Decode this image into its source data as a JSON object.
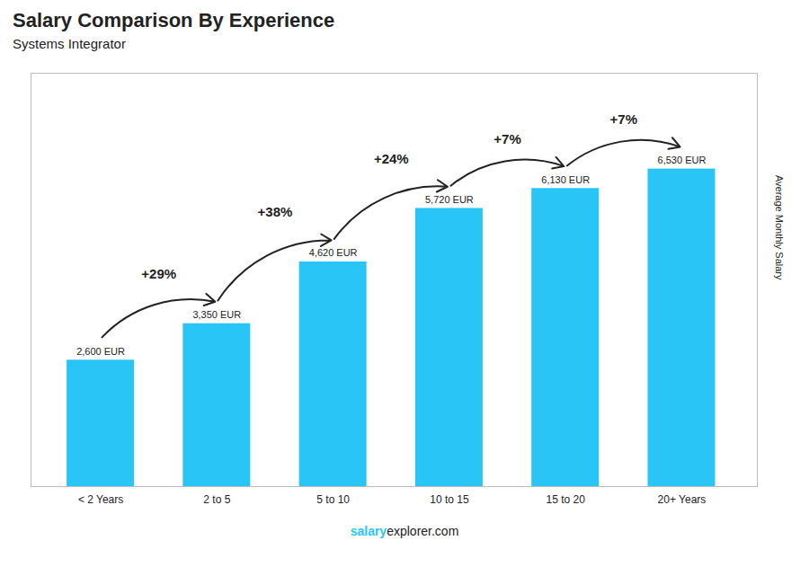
{
  "chart_data": {
    "type": "bar",
    "title": "Salary Comparison By Experience",
    "subtitle": "Systems Integrator",
    "categories": [
      "< 2 Years",
      "2 to 5",
      "5 to 10",
      "10 to 15",
      "15 to 20",
      "20+ Years"
    ],
    "values": [
      2600,
      3350,
      4620,
      5720,
      6130,
      6530
    ],
    "value_labels": [
      "2,600 EUR",
      "3,350 EUR",
      "4,620 EUR",
      "5,720 EUR",
      "6,130 EUR",
      "6,530 EUR"
    ],
    "data_labels": true,
    "color": "#29C5F6",
    "ylabel": "Average Monthly Salary",
    "ylim": [
      0,
      8500
    ],
    "grid": false,
    "tick_labels": "x",
    "annotations": [
      "+29%",
      "+38%",
      "+24%",
      "+7%",
      "+7%"
    ],
    "footer": [
      "salary",
      "explorer.com"
    ]
  }
}
